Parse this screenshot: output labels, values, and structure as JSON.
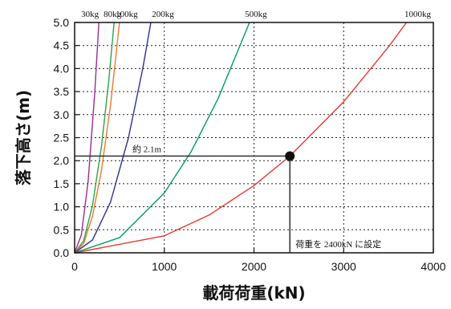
{
  "chart_data": {
    "type": "line",
    "title": "",
    "xlabel": "載荷荷重(kN)",
    "ylabel": "落下高さ(m)",
    "xlim": [
      0,
      4000
    ],
    "ylim": [
      0,
      5.0
    ],
    "x_ticks": [
      "0",
      "1000",
      "2000",
      "3000",
      "4000"
    ],
    "y_ticks": [
      "0.0",
      "0.5",
      "1.0",
      "1.5",
      "2.0",
      "2.5",
      "3.0",
      "3.5",
      "4.0",
      "4.5",
      "5.0"
    ],
    "grid": true,
    "grid_style": "dotted",
    "series": [
      {
        "name": "30kg",
        "color": "#9b2a9b",
        "x": [
          0,
          75,
          150,
          225,
          270
        ],
        "y": [
          0,
          0.39,
          1.55,
          3.48,
          5.0
        ]
      },
      {
        "name": "80kg",
        "color": "#2ea24a",
        "x": [
          0,
          100,
          200,
          300,
          380,
          440
        ],
        "y": [
          0,
          0.26,
          1.03,
          2.32,
          3.73,
          5.0
        ]
      },
      {
        "name": "100kg",
        "color": "#f07a2a",
        "x": [
          0,
          100,
          200,
          300,
          400,
          500
        ],
        "y": [
          0,
          0.2,
          0.8,
          1.8,
          3.2,
          5.0
        ]
      },
      {
        "name": "200kg",
        "color": "#2e3192",
        "x": [
          0,
          200,
          400,
          600,
          760,
          850
        ],
        "y": [
          0,
          0.28,
          1.1,
          2.5,
          4.0,
          5.0
        ]
      },
      {
        "name": "500kg",
        "color": "#009e60",
        "x": [
          0,
          500,
          1000,
          1300,
          1600,
          1950
        ],
        "y": [
          0,
          0.33,
          1.3,
          2.2,
          3.35,
          5.0
        ]
      },
      {
        "name": "1000kg",
        "color": "#e8382e",
        "x": [
          0,
          1000,
          1500,
          2000,
          2400,
          3000,
          3500,
          3700
        ],
        "y": [
          0,
          0.37,
          0.82,
          1.46,
          2.1,
          3.28,
          4.47,
          5.0
        ]
      }
    ],
    "marker": {
      "x": 2400,
      "y": 2.1,
      "color": "#111111"
    },
    "annotations": [
      {
        "id": "height",
        "text": "約 2.1m"
      },
      {
        "id": "load",
        "text": "荷重を 2400kN に設定"
      }
    ]
  }
}
